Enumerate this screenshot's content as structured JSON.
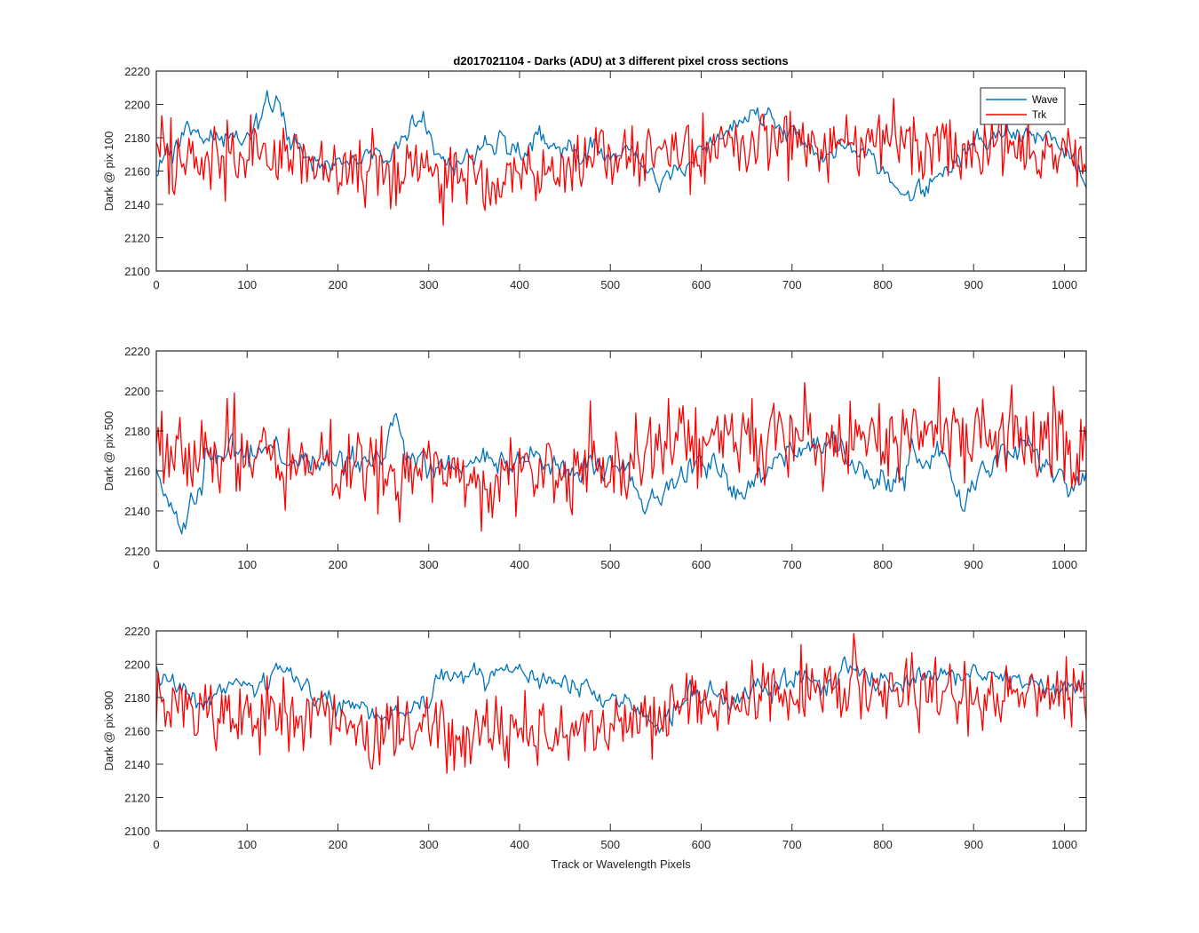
{
  "figure": {
    "title": "d2017021104 - Darks (ADU) at 3 different pixel cross sections",
    "xlabel": "Track or Wavelength Pixels"
  },
  "colors": {
    "wave": "#0072BD",
    "trk": "#FF0000",
    "axis": "#262626",
    "background": "#FFFFFF"
  },
  "legend": {
    "placement": "top-right of first panel",
    "entries": [
      {
        "name": "Wave",
        "color": "#0072BD"
      },
      {
        "name": "Trk",
        "color": "#FF0000"
      }
    ]
  },
  "chart_data": [
    {
      "type": "line",
      "title": "d2017021104 - Darks (ADU) at 3 different pixel cross sections",
      "xlabel": "",
      "ylabel": "Dark @ pix 100",
      "xlim": [
        0,
        1024
      ],
      "ylim": [
        2100,
        2220
      ],
      "xticks": [
        0,
        100,
        200,
        300,
        400,
        500,
        600,
        700,
        800,
        900,
        1000
      ],
      "yticks": [
        2100,
        2120,
        2140,
        2160,
        2180,
        2200,
        2220
      ],
      "grid": false,
      "legend": "top-right",
      "series": [
        {
          "name": "Wave",
          "color": "#0072BD",
          "x": [
            0,
            15,
            30,
            50,
            70,
            90,
            105,
            115,
            125,
            135,
            145,
            160,
            180,
            200,
            220,
            240,
            255,
            265,
            280,
            295,
            305,
            320,
            340,
            360,
            380,
            400,
            420,
            440,
            460,
            480,
            500,
            520,
            540,
            555,
            570,
            590,
            610,
            630,
            645,
            655,
            665,
            680,
            700,
            720,
            740,
            760,
            780,
            800,
            815,
            830,
            840,
            855,
            870,
            890,
            910,
            930,
            950,
            970,
            990,
            1010,
            1024
          ],
          "values": [
            2160,
            2172,
            2178,
            2183,
            2178,
            2176,
            2185,
            2195,
            2198,
            2197,
            2182,
            2172,
            2166,
            2160,
            2168,
            2172,
            2170,
            2178,
            2188,
            2190,
            2174,
            2162,
            2165,
            2176,
            2180,
            2170,
            2178,
            2174,
            2168,
            2172,
            2170,
            2172,
            2165,
            2150,
            2160,
            2168,
            2178,
            2185,
            2190,
            2197,
            2195,
            2190,
            2182,
            2174,
            2172,
            2180,
            2170,
            2160,
            2148,
            2140,
            2148,
            2155,
            2160,
            2172,
            2176,
            2182,
            2185,
            2180,
            2178,
            2165,
            2150
          ]
        },
        {
          "name": "Trk",
          "color": "#FF0000",
          "x": [
            0,
            50,
            100,
            150,
            200,
            250,
            300,
            350,
            400,
            450,
            500,
            550,
            600,
            650,
            700,
            750,
            800,
            850,
            900,
            950,
            1000,
            1024
          ],
          "values": [
            2168,
            2168,
            2170,
            2168,
            2162,
            2160,
            2160,
            2158,
            2160,
            2162,
            2168,
            2170,
            2172,
            2174,
            2176,
            2176,
            2178,
            2176,
            2174,
            2176,
            2172,
            2170
          ]
        }
      ]
    },
    {
      "type": "line",
      "xlabel": "",
      "ylabel": "Dark @ pix 500",
      "xlim": [
        0,
        1024
      ],
      "ylim": [
        2120,
        2220
      ],
      "xticks": [
        0,
        100,
        200,
        300,
        400,
        500,
        600,
        700,
        800,
        900,
        1000
      ],
      "yticks": [
        2120,
        2140,
        2160,
        2180,
        2200,
        2220
      ],
      "grid": false,
      "series": [
        {
          "name": "Wave",
          "color": "#0072BD",
          "x": [
            0,
            10,
            20,
            28,
            40,
            55,
            80,
            120,
            160,
            200,
            240,
            255,
            262,
            275,
            300,
            340,
            380,
            420,
            460,
            500,
            520,
            535,
            560,
            580,
            600,
            620,
            640,
            660,
            690,
            720,
            750,
            770,
            790,
            810,
            830,
            860,
            880,
            890,
            910,
            930,
            960,
            980,
            1000,
            1024
          ],
          "values": [
            2160,
            2150,
            2138,
            2128,
            2145,
            2162,
            2168,
            2170,
            2165,
            2162,
            2165,
            2178,
            2182,
            2170,
            2163,
            2160,
            2165,
            2162,
            2162,
            2163,
            2158,
            2143,
            2150,
            2160,
            2168,
            2158,
            2150,
            2155,
            2165,
            2175,
            2172,
            2158,
            2150,
            2155,
            2162,
            2168,
            2152,
            2142,
            2162,
            2168,
            2172,
            2160,
            2150,
            2160
          ]
        },
        {
          "name": "Trk",
          "color": "#FF0000",
          "x": [
            0,
            50,
            100,
            150,
            200,
            250,
            300,
            350,
            400,
            450,
            500,
            550,
            600,
            650,
            700,
            750,
            800,
            850,
            900,
            950,
            1000,
            1024
          ],
          "values": [
            2170,
            2170,
            2168,
            2166,
            2164,
            2162,
            2160,
            2158,
            2158,
            2160,
            2164,
            2170,
            2175,
            2176,
            2176,
            2176,
            2180,
            2180,
            2178,
            2176,
            2173,
            2170
          ]
        }
      ]
    },
    {
      "type": "line",
      "xlabel": "Track or Wavelength Pixels",
      "ylabel": "Dark @ pix 900",
      "xlim": [
        0,
        1024
      ],
      "ylim": [
        2100,
        2220
      ],
      "xticks": [
        0,
        100,
        200,
        300,
        400,
        500,
        600,
        700,
        800,
        900,
        1000
      ],
      "yticks": [
        2100,
        2120,
        2140,
        2160,
        2180,
        2200,
        2220
      ],
      "grid": false,
      "series": [
        {
          "name": "Wave",
          "color": "#0072BD",
          "x": [
            0,
            15,
            30,
            50,
            70,
            100,
            120,
            150,
            180,
            200,
            230,
            260,
            290,
            305,
            320,
            340,
            370,
            400,
            420,
            450,
            480,
            500,
            530,
            555,
            570,
            600,
            640,
            680,
            720,
            760,
            800,
            840,
            880,
            920,
            960,
            1000,
            1024
          ],
          "values": [
            2195,
            2190,
            2182,
            2176,
            2185,
            2188,
            2193,
            2192,
            2182,
            2176,
            2172,
            2168,
            2176,
            2186,
            2195,
            2195,
            2192,
            2196,
            2188,
            2188,
            2182,
            2175,
            2170,
            2160,
            2175,
            2180,
            2180,
            2186,
            2190,
            2196,
            2190,
            2192,
            2194,
            2192,
            2190,
            2184,
            2190
          ]
        },
        {
          "name": "Trk",
          "color": "#FF0000",
          "x": [
            0,
            50,
            100,
            150,
            200,
            250,
            300,
            350,
            400,
            450,
            500,
            550,
            600,
            650,
            700,
            750,
            800,
            850,
            900,
            950,
            1000,
            1024
          ],
          "values": [
            2178,
            2170,
            2168,
            2170,
            2168,
            2160,
            2162,
            2160,
            2158,
            2160,
            2164,
            2172,
            2178,
            2180,
            2182,
            2184,
            2184,
            2182,
            2182,
            2182,
            2180,
            2176
          ]
        }
      ]
    }
  ]
}
